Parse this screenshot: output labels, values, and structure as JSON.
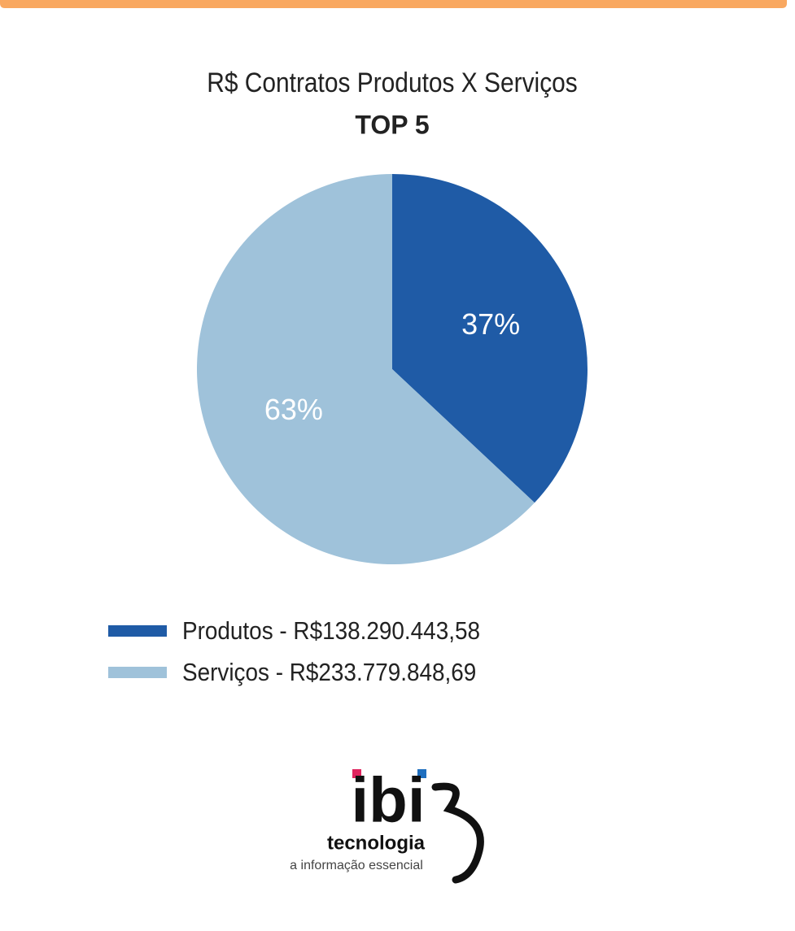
{
  "chart_data": {
    "type": "pie",
    "title": "R$ Contratos Produtos X Serviços",
    "subtitle": "TOP 5",
    "categories": [
      "Produtos - R$138.290.443,58",
      "Serviços - R$233.779.848,69"
    ],
    "values": [
      37,
      63
    ],
    "value_labels": [
      "37%",
      "63%"
    ],
    "colors": [
      "#1f5ba6",
      "#9fc2da"
    ],
    "legend": "bottom-left"
  },
  "logo": {
    "name": "ibi",
    "line1": "tecnologia",
    "line2": "a informação essencial"
  }
}
